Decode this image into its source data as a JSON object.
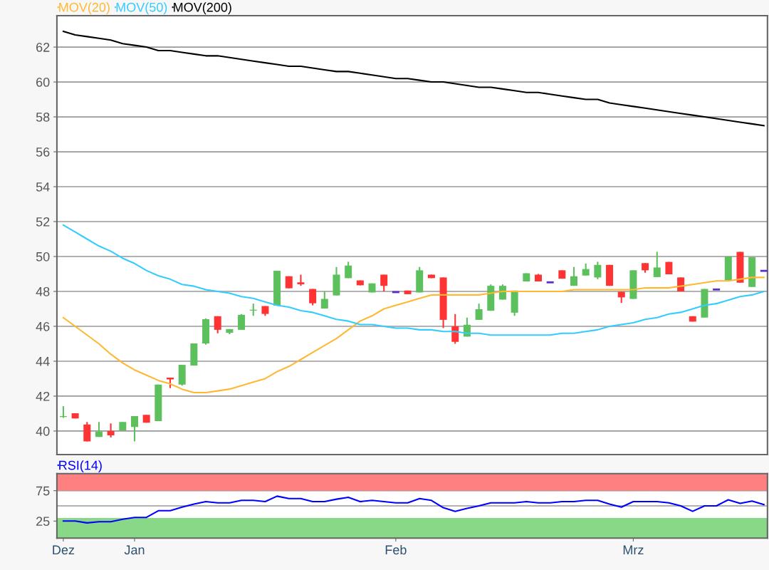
{
  "chart_data": [
    {
      "type": "candlestick",
      "categories": [
        null,
        null,
        null,
        null,
        null,
        null,
        null,
        null,
        null,
        null,
        null,
        null,
        null,
        null,
        null,
        null,
        null,
        null,
        null,
        null,
        null,
        null,
        null,
        null,
        null,
        null,
        null,
        null,
        null,
        null,
        null,
        null,
        null,
        null,
        null,
        null,
        null,
        null,
        null,
        null,
        null,
        null,
        null,
        null,
        null,
        null,
        null,
        null,
        null,
        null,
        null,
        null,
        null,
        null,
        null,
        null,
        null,
        null,
        null,
        null
      ],
      "ohlc": [
        [
          40.8,
          41.43,
          40.75,
          40.85
        ],
        [
          41.02,
          41.02,
          40.72,
          40.72
        ],
        [
          40.37,
          40.52,
          39.41,
          39.41
        ],
        [
          39.66,
          40.52,
          39.66,
          39.97
        ],
        [
          40.0,
          40.44,
          39.63,
          39.75
        ],
        [
          40.04,
          40.52,
          40.0,
          40.52
        ],
        [
          40.23,
          40.85,
          39.41,
          40.85
        ],
        [
          40.93,
          40.93,
          40.48,
          40.48
        ],
        [
          40.57,
          42.66,
          40.57,
          42.66
        ],
        [
          43.06,
          43.06,
          42.46,
          42.96
        ],
        [
          42.66,
          43.79,
          42.6,
          43.79
        ],
        [
          43.75,
          45.02,
          43.75,
          45.02
        ],
        [
          45.02,
          46.45,
          44.95,
          46.41
        ],
        [
          46.58,
          46.58,
          45.6,
          45.8
        ],
        [
          45.63,
          45.84,
          45.55,
          45.84
        ],
        [
          45.8,
          46.7,
          45.8,
          46.66
        ],
        [
          46.9,
          47.3,
          46.6,
          46.95
        ],
        [
          47.16,
          47.16,
          46.6,
          46.71
        ],
        [
          47.19,
          49.18,
          47.19,
          49.18
        ],
        [
          48.87,
          48.87,
          48.18,
          48.18
        ],
        [
          48.52,
          48.96,
          48.32,
          48.41
        ],
        [
          48.14,
          48.14,
          47.2,
          47.32
        ],
        [
          47.02,
          48.0,
          47.02,
          47.57
        ],
        [
          47.77,
          49.4,
          47.77,
          48.96
        ],
        [
          48.76,
          49.7,
          48.76,
          49.48
        ],
        [
          48.63,
          48.63,
          48.35,
          48.35
        ],
        [
          47.94,
          48.46,
          47.94,
          48.46
        ],
        [
          48.96,
          48.96,
          48.0,
          48.32
        ],
        [
          47.96,
          47.96,
          47.96,
          47.96
        ],
        [
          48.05,
          48.05,
          47.84,
          47.84
        ],
        [
          47.94,
          49.4,
          47.94,
          49.21
        ],
        [
          48.96,
          48.96,
          48.76,
          48.76
        ],
        [
          48.8,
          48.8,
          45.9,
          46.37
        ],
        [
          46.0,
          46.7,
          45.0,
          45.11
        ],
        [
          45.41,
          46.5,
          45.41,
          46.09
        ],
        [
          46.37,
          47.3,
          46.37,
          46.98
        ],
        [
          46.89,
          48.4,
          46.89,
          48.32
        ],
        [
          47.53,
          48.4,
          47.53,
          48.32
        ],
        [
          46.78,
          48.05,
          46.6,
          48.05
        ],
        [
          48.57,
          49.04,
          48.57,
          49.04
        ],
        [
          48.96,
          49.0,
          48.57,
          48.57
        ],
        [
          48.52,
          48.52,
          48.52,
          48.52
        ],
        [
          49.21,
          49.21,
          48.73,
          48.73
        ],
        [
          48.32,
          49.4,
          48.32,
          48.87
        ],
        [
          48.91,
          49.6,
          48.91,
          49.28
        ],
        [
          48.8,
          49.7,
          48.7,
          49.52
        ],
        [
          49.52,
          49.52,
          48.32,
          48.32
        ],
        [
          47.98,
          47.98,
          47.34,
          47.66
        ],
        [
          47.57,
          49.21,
          47.57,
          49.21
        ],
        [
          49.62,
          49.62,
          49.07,
          49.21
        ],
        [
          48.82,
          50.27,
          48.82,
          49.37
        ],
        [
          49.69,
          49.69,
          48.98,
          48.98
        ],
        [
          48.8,
          48.8,
          48.0,
          48.0
        ],
        [
          46.58,
          46.58,
          46.27,
          46.27
        ],
        [
          46.5,
          48.14,
          46.5,
          48.14
        ],
        [
          48.11,
          48.11,
          48.11,
          48.11
        ],
        [
          48.63,
          50.0,
          48.63,
          50.0
        ],
        [
          50.27,
          50.27,
          48.5,
          48.5
        ],
        [
          48.25,
          49.96,
          48.25,
          49.96
        ],
        [
          49.18,
          49.18,
          49.18,
          49.18
        ]
      ],
      "colors": [
        "#5cc15c",
        "#ff3333",
        "#ff3333",
        "#5cc15c",
        "#ff3333",
        "#5cc15c",
        "#5cc15c",
        "#ff3333",
        "#5cc15c",
        "#ff3333",
        "#5cc15c",
        "#5cc15c",
        "#5cc15c",
        "#ff3333",
        "#5cc15c",
        "#5cc15c",
        "#5cc15c",
        "#ff3333",
        "#5cc15c",
        "#ff3333",
        "#ff3333",
        "#ff3333",
        "#5cc15c",
        "#5cc15c",
        "#5cc15c",
        "#ff3333",
        "#5cc15c",
        "#ff3333",
        "#5a2ccc",
        "#ff3333",
        "#5cc15c",
        "#ff3333",
        "#ff3333",
        "#ff3333",
        "#5cc15c",
        "#5cc15c",
        "#5cc15c",
        "#5cc15c",
        "#5cc15c",
        "#5cc15c",
        "#ff3333",
        "#5a2ccc",
        "#ff3333",
        "#5cc15c",
        "#5cc15c",
        "#5cc15c",
        "#ff3333",
        "#ff3333",
        "#5cc15c",
        "#ff3333",
        "#5cc15c",
        "#ff3333",
        "#ff3333",
        "#ff3333",
        "#5cc15c",
        "#5a2ccc",
        "#5cc15c",
        "#ff3333",
        "#5cc15c",
        "#5a2ccc"
      ],
      "series": [
        {
          "type": "line",
          "name": "MOV(20)",
          "color": "#ffb833",
          "values": [
            46.5,
            46.0,
            45.5,
            45.0,
            44.4,
            43.9,
            43.5,
            43.2,
            42.9,
            42.7,
            42.4,
            42.2,
            42.2,
            42.3,
            42.4,
            42.6,
            42.8,
            43.0,
            43.4,
            43.7,
            44.1,
            44.5,
            44.9,
            45.3,
            45.8,
            46.3,
            46.6,
            47.0,
            47.2,
            47.4,
            47.6,
            47.8,
            47.8,
            47.8,
            47.8,
            47.8,
            47.9,
            48.0,
            48.0,
            48.0,
            48.0,
            48.0,
            48.0,
            48.1,
            48.1,
            48.1,
            48.1,
            48.1,
            48.1,
            48.2,
            48.2,
            48.2,
            48.3,
            48.4,
            48.5,
            48.6,
            48.6,
            48.7,
            48.8,
            48.8
          ]
        },
        {
          "type": "line",
          "name": "MOV(50)",
          "color": "#33ccff",
          "values": [
            51.8,
            51.4,
            51.0,
            50.6,
            50.3,
            49.9,
            49.6,
            49.2,
            48.9,
            48.7,
            48.4,
            48.3,
            48.1,
            48.0,
            47.9,
            47.7,
            47.6,
            47.4,
            47.2,
            47.1,
            46.9,
            46.8,
            46.6,
            46.4,
            46.3,
            46.1,
            46.1,
            46.0,
            45.9,
            45.9,
            45.8,
            45.8,
            45.7,
            45.7,
            45.6,
            45.6,
            45.5,
            45.5,
            45.5,
            45.5,
            45.5,
            45.5,
            45.6,
            45.6,
            45.7,
            45.8,
            46.0,
            46.1,
            46.2,
            46.4,
            46.5,
            46.7,
            46.8,
            47.0,
            47.2,
            47.3,
            47.5,
            47.7,
            47.8,
            48.0
          ]
        },
        {
          "type": "line",
          "name": "MOV(200)",
          "color": "#000000",
          "values": [
            62.9,
            62.7,
            62.6,
            62.5,
            62.4,
            62.2,
            62.1,
            62.0,
            61.8,
            61.8,
            61.7,
            61.6,
            61.5,
            61.5,
            61.4,
            61.3,
            61.2,
            61.1,
            61.0,
            60.9,
            60.9,
            60.8,
            60.7,
            60.6,
            60.6,
            60.5,
            60.4,
            60.3,
            60.2,
            60.2,
            60.1,
            60.0,
            60.0,
            59.9,
            59.8,
            59.7,
            59.7,
            59.6,
            59.5,
            59.4,
            59.4,
            59.3,
            59.2,
            59.1,
            59.0,
            59.0,
            58.8,
            58.7,
            58.6,
            58.5,
            58.4,
            58.3,
            58.2,
            58.1,
            58.0,
            57.9,
            57.8,
            57.7,
            57.6,
            57.5
          ]
        }
      ],
      "ylim": [
        38.65,
        63.8
      ],
      "yticks": [
        40,
        42,
        44,
        46,
        48,
        50,
        52,
        54,
        56,
        58,
        60,
        62
      ],
      "grid": "y",
      "legend": "top left"
    },
    {
      "type": "line",
      "categories": [
        "Dez",
        null,
        null,
        null,
        null,
        null,
        "Jan",
        null,
        null,
        null,
        null,
        null,
        null,
        null,
        null,
        null,
        null,
        null,
        null,
        null,
        null,
        null,
        null,
        null,
        null,
        null,
        null,
        null,
        "Feb",
        null,
        null,
        null,
        null,
        null,
        null,
        null,
        null,
        null,
        null,
        null,
        null,
        null,
        null,
        null,
        null,
        null,
        null,
        null,
        "Mrz",
        null,
        null,
        null,
        null,
        null,
        null,
        null,
        null,
        null,
        null,
        null
      ],
      "series": [
        {
          "name": "RSI(14)",
          "color": "#0000ff",
          "values": [
            25,
            25,
            22,
            24,
            24,
            28,
            31,
            31,
            42,
            42,
            48,
            53,
            57,
            55,
            55,
            59,
            59,
            57,
            66,
            62,
            62,
            57,
            57,
            61,
            64,
            57,
            59,
            57,
            55,
            55,
            62,
            59,
            47,
            41,
            46,
            50,
            55,
            55,
            55,
            57,
            55,
            55,
            57,
            57,
            59,
            59,
            53,
            48,
            57,
            57,
            57,
            55,
            50,
            41,
            50,
            50,
            60,
            54,
            58,
            52
          ]
        }
      ],
      "ylim": [
        -3,
        103
      ],
      "yticks": [
        25,
        75
      ],
      "bands": [
        {
          "axis": "y",
          "from": 75,
          "to": 103,
          "color": "#ff8080"
        },
        {
          "axis": "y",
          "from": -3,
          "to": 30,
          "color": "#88d888"
        }
      ],
      "ref_lines": [
        {
          "axis": "y",
          "value": 50,
          "color": "#999999"
        }
      ],
      "grid": "y",
      "legend": "top left"
    }
  ]
}
